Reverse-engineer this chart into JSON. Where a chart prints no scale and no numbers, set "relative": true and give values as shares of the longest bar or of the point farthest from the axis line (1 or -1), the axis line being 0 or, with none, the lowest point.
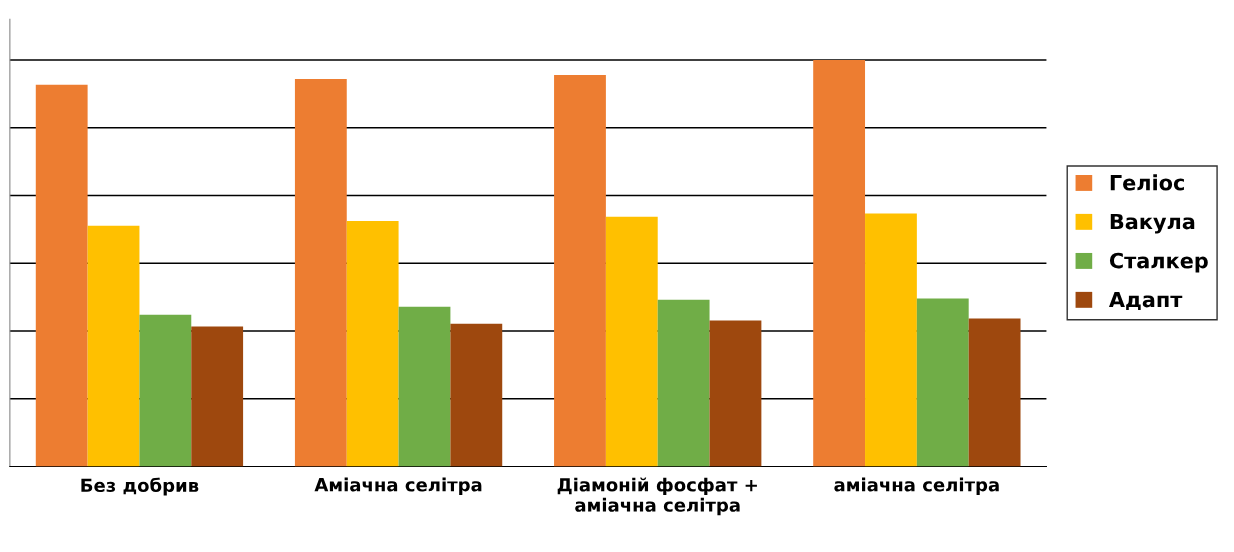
{
  "chart_data": {
    "type": "bar",
    "relative": true,
    "categories": [
      "Без добрив",
      "Аміачна селітра",
      "Діамоній фосфат +\nаміачна селітра",
      "аміачна селітра"
    ],
    "series": [
      {
        "name": "Геліос",
        "color": "#ed7d31",
        "values": [
          0.939,
          0.953,
          0.963,
          1
        ]
      },
      {
        "name": "Вакула",
        "color": "#ffc000",
        "values": [
          0.592,
          0.604,
          0.614,
          0.622
        ]
      },
      {
        "name": "Сталкер",
        "color": "#70ad47",
        "values": [
          0.373,
          0.393,
          0.41,
          0.413
        ]
      },
      {
        "name": "Адапт",
        "color": "#9e480e",
        "values": [
          0.344,
          0.351,
          0.359,
          0.364
        ]
      }
    ],
    "grid": "y",
    "legend": "right"
  }
}
